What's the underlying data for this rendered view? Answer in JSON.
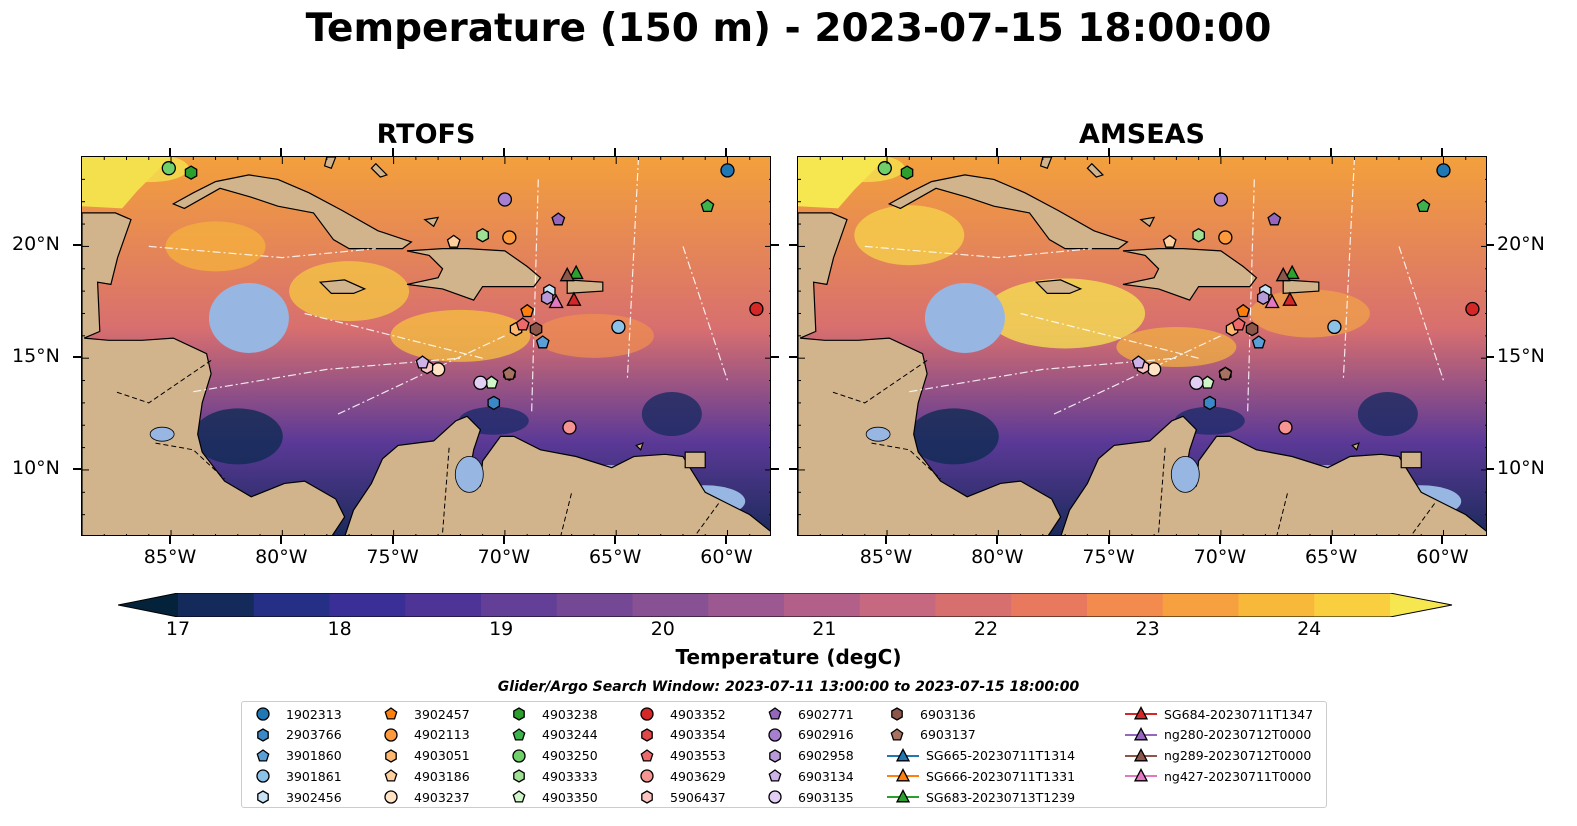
{
  "title": "Temperature (150 m) - 2023-07-15 18:00:00",
  "panels": [
    {
      "title": "RTOFS"
    },
    {
      "title": "AMSEAS"
    }
  ],
  "lon_ticks": [
    "85°W",
    "80°W",
    "75°W",
    "70°W",
    "65°W",
    "60°W"
  ],
  "lat_ticks": [
    "20°N",
    "15°N",
    "10°N"
  ],
  "colorbar": {
    "label": "Temperature (degC)",
    "ticks": [
      "17",
      "18",
      "19",
      "20",
      "21",
      "22",
      "23",
      "24"
    ],
    "range": [
      17,
      24.5
    ],
    "colors": [
      "#04233a",
      "#132a5a",
      "#252f85",
      "#3a2f96",
      "#4f3497",
      "#633f97",
      "#754896",
      "#875193",
      "#9c5890",
      "#b25f8a",
      "#c6687f",
      "#d86f6f",
      "#e8795e",
      "#f28b4d",
      "#f6a040",
      "#f8b83a",
      "#f9ce3f",
      "#f6e650"
    ]
  },
  "legend": {
    "title": "Glider/Argo Search Window: 2023-07-11 13:00:00 to 2023-07-15 18:00:00",
    "items": [
      {
        "label": "1902313",
        "marker": "circle",
        "color": "#1f77b4"
      },
      {
        "label": "2903766",
        "marker": "hexagon",
        "color": "#3a88c7"
      },
      {
        "label": "3901860",
        "marker": "pentagon",
        "color": "#5a9fd6"
      },
      {
        "label": "3901861",
        "marker": "circle",
        "color": "#8cc1e8"
      },
      {
        "label": "3902456",
        "marker": "hexagon",
        "color": "#c8e2f6"
      },
      {
        "label": "3902457",
        "marker": "pentagon",
        "color": "#ff7f0e"
      },
      {
        "label": "4902113",
        "marker": "circle",
        "color": "#ff9a3c"
      },
      {
        "label": "4903051",
        "marker": "hexagon",
        "color": "#ffb870"
      },
      {
        "label": "4903186",
        "marker": "pentagon",
        "color": "#ffcf9e"
      },
      {
        "label": "4903237",
        "marker": "circle",
        "color": "#ffe3c4"
      },
      {
        "label": "4903238",
        "marker": "hexagon",
        "color": "#2ca02c"
      },
      {
        "label": "4903244",
        "marker": "pentagon",
        "color": "#3cb44b"
      },
      {
        "label": "4903250",
        "marker": "circle",
        "color": "#6fd06a"
      },
      {
        "label": "4903333",
        "marker": "hexagon",
        "color": "#9fe094"
      },
      {
        "label": "4903350",
        "marker": "pentagon",
        "color": "#d0f5c8"
      },
      {
        "label": "4903352",
        "marker": "circle",
        "color": "#d62728"
      },
      {
        "label": "4903354",
        "marker": "hexagon",
        "color": "#e0484a"
      },
      {
        "label": "4903553",
        "marker": "pentagon",
        "color": "#ec6a6c"
      },
      {
        "label": "4903629",
        "marker": "circle",
        "color": "#f59491"
      },
      {
        "label": "5906437",
        "marker": "hexagon",
        "color": "#fcc4c0"
      },
      {
        "label": "6902771",
        "marker": "pentagon",
        "color": "#9467bd"
      },
      {
        "label": "6902916",
        "marker": "circle",
        "color": "#a77fd0"
      },
      {
        "label": "6902958",
        "marker": "hexagon",
        "color": "#b99ad9"
      },
      {
        "label": "6903134",
        "marker": "pentagon",
        "color": "#cdb3ea"
      },
      {
        "label": "6903135",
        "marker": "circle",
        "color": "#e2cff5"
      },
      {
        "label": "6903136",
        "marker": "hexagon",
        "color": "#8c564b"
      },
      {
        "label": "6903137",
        "marker": "pentagon",
        "color": "#a87262"
      },
      {
        "label": "SG665-20230711T1314",
        "marker": "triangle-line",
        "color": "#1f77b4"
      },
      {
        "label": "SG666-20230711T1331",
        "marker": "triangle-line",
        "color": "#ff7f0e"
      },
      {
        "label": "SG683-20230713T1239",
        "marker": "triangle-line",
        "color": "#2ca02c"
      },
      {
        "label": "SG684-20230711T1347",
        "marker": "triangle-line",
        "color": "#d62728"
      },
      {
        "label": "ng280-20230712T0000",
        "marker": "triangle-line",
        "color": "#9467bd"
      },
      {
        "label": "ng289-20230712T0000",
        "marker": "triangle-line",
        "color": "#8c564b"
      },
      {
        "label": "ng427-20230711T0000",
        "marker": "triangle-line",
        "color": "#e377c2"
      }
    ]
  },
  "map_extent": {
    "lon": [
      -89,
      -58
    ],
    "lat": [
      7,
      24
    ]
  },
  "markers": [
    {
      "id": "1902313",
      "lon": -60.0,
      "lat": 23.4,
      "marker": "circle",
      "color": "#1f77b4"
    },
    {
      "id": "2903766",
      "lon": -70.5,
      "lat": 13.0,
      "marker": "hexagon",
      "color": "#3a88c7"
    },
    {
      "id": "3901860",
      "lon": -68.3,
      "lat": 15.7,
      "marker": "pentagon",
      "color": "#5a9fd6"
    },
    {
      "id": "3901861",
      "lon": -64.9,
      "lat": 16.4,
      "marker": "circle",
      "color": "#8cc1e8"
    },
    {
      "id": "3902456",
      "lon": -68.0,
      "lat": 18.0,
      "marker": "hexagon",
      "color": "#c8e2f6"
    },
    {
      "id": "3902457",
      "lon": -69.0,
      "lat": 17.1,
      "marker": "pentagon",
      "color": "#ff7f0e"
    },
    {
      "id": "4902113",
      "lon": -69.8,
      "lat": 20.4,
      "marker": "circle",
      "color": "#ff9a3c"
    },
    {
      "id": "4903051",
      "lon": -69.5,
      "lat": 16.3,
      "marker": "hexagon",
      "color": "#ffb870"
    },
    {
      "id": "4903186",
      "lon": -72.3,
      "lat": 20.2,
      "marker": "pentagon",
      "color": "#ffcf9e"
    },
    {
      "id": "4903237",
      "lon": -73.0,
      "lat": 14.5,
      "marker": "circle",
      "color": "#ffe3c4"
    },
    {
      "id": "4903238",
      "lon": -84.1,
      "lat": 23.3,
      "marker": "hexagon",
      "color": "#2ca02c"
    },
    {
      "id": "4903244",
      "lon": -60.9,
      "lat": 21.8,
      "marker": "pentagon",
      "color": "#3cb44b"
    },
    {
      "id": "4903250",
      "lon": -85.1,
      "lat": 23.5,
      "marker": "circle",
      "color": "#6fd06a"
    },
    {
      "id": "4903333",
      "lon": -71.0,
      "lat": 20.5,
      "marker": "hexagon",
      "color": "#9fe094"
    },
    {
      "id": "4903350",
      "lon": -70.6,
      "lat": 13.9,
      "marker": "pentagon",
      "color": "#d0f5c8"
    },
    {
      "id": "4903352",
      "lon": -58.7,
      "lat": 17.2,
      "marker": "circle",
      "color": "#d62728"
    },
    {
      "id": "4903354",
      "lon": -69.8,
      "lat": 14.3,
      "marker": "hexagon",
      "color": "#e0484a"
    },
    {
      "id": "4903553",
      "lon": -69.2,
      "lat": 16.5,
      "marker": "pentagon",
      "color": "#ec6a6c"
    },
    {
      "id": "4903629",
      "lon": -67.1,
      "lat": 11.9,
      "marker": "circle",
      "color": "#f59491"
    },
    {
      "id": "5906437",
      "lon": -73.5,
      "lat": 14.6,
      "marker": "hexagon",
      "color": "#fcc4c0"
    },
    {
      "id": "6902771",
      "lon": -67.6,
      "lat": 21.2,
      "marker": "pentagon",
      "color": "#9467bd"
    },
    {
      "id": "6902916",
      "lon": -70.0,
      "lat": 22.1,
      "marker": "circle",
      "color": "#a77fd0"
    },
    {
      "id": "6902958",
      "lon": -68.1,
      "lat": 17.7,
      "marker": "hexagon",
      "color": "#b99ad9"
    },
    {
      "id": "6903134",
      "lon": -73.7,
      "lat": 14.8,
      "marker": "pentagon",
      "color": "#cdb3ea"
    },
    {
      "id": "6903135",
      "lon": -71.1,
      "lat": 13.9,
      "marker": "circle",
      "color": "#e2cff5"
    },
    {
      "id": "6903136",
      "lon": -68.6,
      "lat": 16.3,
      "marker": "hexagon",
      "color": "#8c564b"
    },
    {
      "id": "6903137",
      "lon": -69.8,
      "lat": 14.3,
      "marker": "pentagon",
      "color": "#a87262"
    },
    {
      "id": "SG684-20230711T1347",
      "lon": -66.9,
      "lat": 17.6,
      "marker": "triangle",
      "color": "#d62728"
    },
    {
      "id": "SG683-20230713T1239",
      "lon": -66.8,
      "lat": 18.8,
      "marker": "triangle",
      "color": "#2ca02c"
    },
    {
      "id": "ng289-20230712T0000",
      "lon": -67.2,
      "lat": 18.7,
      "marker": "triangle",
      "color": "#8c564b"
    },
    {
      "id": "ng427-20230711T0000",
      "lon": -67.7,
      "lat": 17.5,
      "marker": "triangle",
      "color": "#e377c2"
    }
  ]
}
